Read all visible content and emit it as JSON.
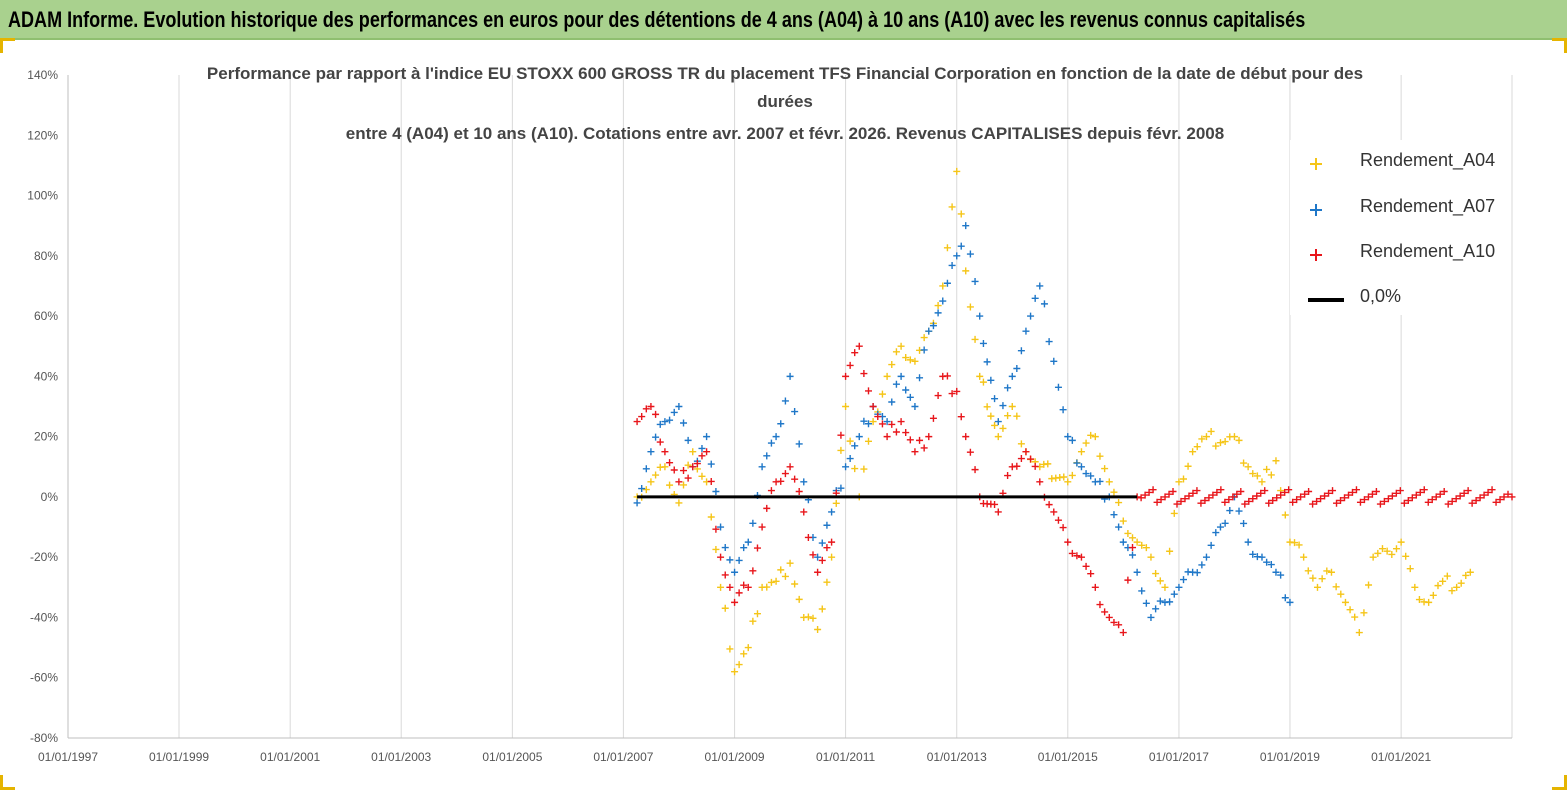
{
  "banner": {
    "title": "ADAM Informe. Evolution historique des performances en euros pour des détentions de 4 ans (A04) à 10 ans (A10) avec les revenus connus capitalisés"
  },
  "chart_data": {
    "type": "scatter",
    "title_lines": [
      "Performance par rapport à l'indice EU STOXX 600 GROSS TR  du placement TFS Financial Corporation en fonction de la date de début pour des",
      "durées",
      "entre 4 (A04) et 10 ans (A10).  Cotations entre avr. 2007 et févr. 2026. Revenus CAPITALISES depuis févr. 2008"
    ],
    "x_ticks": [
      "01/01/1997",
      "01/01/1999",
      "01/01/2001",
      "01/01/2003",
      "01/01/2005",
      "01/01/2007",
      "01/01/2009",
      "01/01/2011",
      "01/01/2013",
      "01/01/2015",
      "01/01/2017",
      "01/01/2019",
      "01/01/2021"
    ],
    "xlim": [
      "1997-01-01",
      "2022-12-31"
    ],
    "y_ticks": [
      "140%",
      "120%",
      "100%",
      "80%",
      "60%",
      "40%",
      "20%",
      "0%",
      "-20%",
      "-40%",
      "-60%",
      "-80%"
    ],
    "ylim": [
      -80,
      140
    ],
    "grid": "vertical",
    "legend_position": "top-right",
    "series": [
      {
        "name": "Rendement_A04",
        "color": "#f5c518",
        "marker": "plus",
        "points": [
          [
            "2007-04-01",
            0
          ],
          [
            "2007-07-01",
            5
          ],
          [
            "2007-10-01",
            10
          ],
          [
            "2008-01-01",
            -2
          ],
          [
            "2008-04-01",
            15
          ],
          [
            "2008-07-01",
            5
          ],
          [
            "2008-10-01",
            -30
          ],
          [
            "2009-01-01",
            -58
          ],
          [
            "2009-04-01",
            -50
          ],
          [
            "2009-07-01",
            -30
          ],
          [
            "2009-10-01",
            -28
          ],
          [
            "2010-01-01",
            -22
          ],
          [
            "2010-04-01",
            -40
          ],
          [
            "2010-07-01",
            -44
          ],
          [
            "2010-10-01",
            -20
          ],
          [
            "2011-01-01",
            30
          ],
          [
            "2011-04-01",
            0
          ],
          [
            "2011-07-01",
            25
          ],
          [
            "2011-10-01",
            40
          ],
          [
            "2012-01-01",
            50
          ],
          [
            "2012-04-01",
            45
          ],
          [
            "2012-07-01",
            55
          ],
          [
            "2012-10-01",
            70
          ],
          [
            "2013-01-01",
            108
          ],
          [
            "2013-03-01",
            75
          ],
          [
            "2013-06-01",
            40
          ],
          [
            "2013-10-01",
            20
          ],
          [
            "2014-01-01",
            30
          ],
          [
            "2014-04-01",
            15
          ],
          [
            "2014-07-01",
            10
          ],
          [
            "2015-01-01",
            5
          ],
          [
            "2015-04-01",
            15
          ],
          [
            "2015-07-01",
            20
          ],
          [
            "2015-10-01",
            5
          ],
          [
            "2016-01-01",
            -8
          ],
          [
            "2016-04-01",
            -15
          ],
          [
            "2016-07-01",
            -20
          ],
          [
            "2016-10-01",
            -30
          ],
          [
            "2017-01-01",
            5
          ],
          [
            "2017-04-01",
            15
          ],
          [
            "2017-07-01",
            20
          ],
          [
            "2017-10-01",
            18
          ],
          [
            "2018-01-01",
            20
          ],
          [
            "2018-04-01",
            10
          ],
          [
            "2018-07-01",
            5
          ],
          [
            "2018-10-01",
            12
          ],
          [
            "2019-01-01",
            -15
          ],
          [
            "2019-04-01",
            -20
          ],
          [
            "2019-07-01",
            -30
          ],
          [
            "2019-10-01",
            -25
          ],
          [
            "2020-01-01",
            -35
          ],
          [
            "2020-04-01",
            -45
          ],
          [
            "2020-07-01",
            -20
          ],
          [
            "2020-10-01",
            -18
          ],
          [
            "2021-01-01",
            -15
          ],
          [
            "2021-04-01",
            -30
          ],
          [
            "2021-07-01",
            -35
          ],
          [
            "2021-10-01",
            -28
          ],
          [
            "2022-01-01",
            -30
          ],
          [
            "2022-04-01",
            -25
          ]
        ]
      },
      {
        "name": "Rendement_A07",
        "color": "#1f77c8",
        "marker": "plus",
        "points": [
          [
            "2007-04-01",
            -2
          ],
          [
            "2007-07-01",
            15
          ],
          [
            "2007-10-01",
            25
          ],
          [
            "2008-01-01",
            30
          ],
          [
            "2008-04-01",
            10
          ],
          [
            "2008-07-01",
            20
          ],
          [
            "2008-10-01",
            -10
          ],
          [
            "2009-01-01",
            -25
          ],
          [
            "2009-04-01",
            -15
          ],
          [
            "2009-07-01",
            10
          ],
          [
            "2009-10-01",
            20
          ],
          [
            "2010-01-01",
            40
          ],
          [
            "2010-04-01",
            5
          ],
          [
            "2010-07-01",
            -20
          ],
          [
            "2010-10-01",
            -5
          ],
          [
            "2011-01-01",
            10
          ],
          [
            "2011-04-01",
            20
          ],
          [
            "2011-07-01",
            30
          ],
          [
            "2011-10-01",
            25
          ],
          [
            "2012-01-01",
            40
          ],
          [
            "2012-04-01",
            30
          ],
          [
            "2012-07-01",
            55
          ],
          [
            "2012-10-01",
            65
          ],
          [
            "2013-01-01",
            80
          ],
          [
            "2013-03-01",
            90
          ],
          [
            "2013-06-01",
            60
          ],
          [
            "2013-10-01",
            25
          ],
          [
            "2014-01-01",
            40
          ],
          [
            "2014-04-01",
            55
          ],
          [
            "2014-07-01",
            70
          ],
          [
            "2014-10-01",
            45
          ],
          [
            "2015-01-01",
            20
          ],
          [
            "2015-04-01",
            10
          ],
          [
            "2015-07-01",
            5
          ],
          [
            "2015-10-01",
            0
          ],
          [
            "2016-01-01",
            -15
          ],
          [
            "2016-04-01",
            -25
          ],
          [
            "2016-07-01",
            -40
          ],
          [
            "2016-10-01",
            -35
          ],
          [
            "2017-01-01",
            -30
          ],
          [
            "2017-04-01",
            -25
          ],
          [
            "2017-07-01",
            -20
          ],
          [
            "2017-10-01",
            -10
          ],
          [
            "2018-01-01",
            0
          ],
          [
            "2018-04-01",
            -15
          ],
          [
            "2018-07-01",
            -20
          ],
          [
            "2018-10-01",
            -25
          ],
          [
            "2019-01-01",
            -35
          ]
        ]
      },
      {
        "name": "Rendement_A10",
        "color": "#e8161b",
        "marker": "plus",
        "points": [
          [
            "2007-04-01",
            25
          ],
          [
            "2007-07-01",
            30
          ],
          [
            "2007-10-01",
            15
          ],
          [
            "2008-01-01",
            5
          ],
          [
            "2008-04-01",
            10
          ],
          [
            "2008-07-01",
            15
          ],
          [
            "2008-10-01",
            -20
          ],
          [
            "2009-01-01",
            -35
          ],
          [
            "2009-04-01",
            -30
          ],
          [
            "2009-07-01",
            -10
          ],
          [
            "2009-10-01",
            5
          ],
          [
            "2010-01-01",
            10
          ],
          [
            "2010-04-01",
            -5
          ],
          [
            "2010-07-01",
            -25
          ],
          [
            "2010-10-01",
            -15
          ],
          [
            "2011-01-01",
            40
          ],
          [
            "2011-04-01",
            50
          ],
          [
            "2011-07-01",
            30
          ],
          [
            "2011-10-01",
            20
          ],
          [
            "2012-01-01",
            25
          ],
          [
            "2012-04-01",
            15
          ],
          [
            "2012-07-01",
            20
          ],
          [
            "2012-10-01",
            40
          ],
          [
            "2013-01-01",
            35
          ],
          [
            "2013-03-01",
            20
          ],
          [
            "2013-06-01",
            0
          ],
          [
            "2013-10-01",
            -5
          ],
          [
            "2014-01-01",
            10
          ],
          [
            "2014-04-01",
            15
          ],
          [
            "2014-07-01",
            5
          ],
          [
            "2014-10-01",
            -5
          ],
          [
            "2015-01-01",
            -15
          ],
          [
            "2015-04-01",
            -20
          ],
          [
            "2015-07-01",
            -30
          ],
          [
            "2015-10-01",
            -40
          ],
          [
            "2016-01-01",
            -45
          ],
          [
            "2016-04-01",
            0
          ],
          [
            "2022-12-31",
            0
          ]
        ]
      }
    ],
    "reference_line": {
      "name": "0,0%",
      "value": 0,
      "color": "#000000"
    }
  }
}
